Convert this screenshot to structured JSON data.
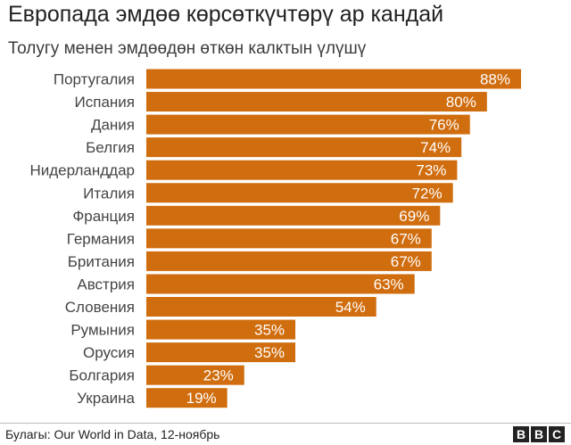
{
  "header": {
    "title": "Европада эмдөө көрсөткүчтөрү ар кандай",
    "subtitle": "Толугу менен эмдөөдөн өткөн калктын үлүшү"
  },
  "footer": {
    "source": "Булагы: Our World in Data, 12-ноябрь",
    "logo_letters": [
      "B",
      "B",
      "C"
    ]
  },
  "colors": {
    "bar": "#d06d0e",
    "bar_label": "#ffffff",
    "category_label": "#444444"
  },
  "chart_data": {
    "type": "bar",
    "orientation": "horizontal",
    "title": "Европада эмдөө көрсөткүчтөрү ар кандай",
    "subtitle": "Толугу менен эмдөөдөн өткөн калктын үлүшү",
    "categories": [
      "Португалия",
      "Испания",
      "Дания",
      "Белгия",
      "Нидерланддар",
      "Италия",
      "Франция",
      "Германия",
      "Британия",
      "Австрия",
      "Словения",
      "Румыния",
      "Орусия",
      "Болгария",
      "Украина"
    ],
    "values": [
      88,
      80,
      76,
      74,
      73,
      72,
      69,
      67,
      67,
      63,
      54,
      35,
      35,
      23,
      19
    ],
    "value_labels": [
      "88%",
      "80%",
      "76%",
      "74%",
      "73%",
      "72%",
      "69%",
      "67%",
      "67%",
      "63%",
      "54%",
      "35%",
      "35%",
      "23%",
      "19%"
    ],
    "xlim": [
      0,
      88
    ],
    "grid": false,
    "legend": "none"
  }
}
